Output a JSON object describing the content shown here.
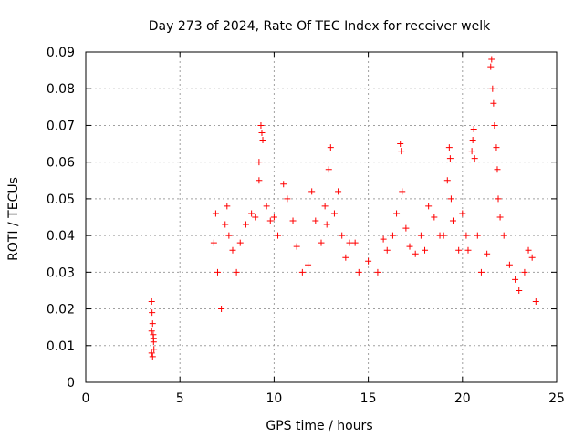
{
  "chart_data": {
    "type": "scatter",
    "title": "Day 273 of 2024, Rate Of TEC Index for receiver welk",
    "xlabel": "GPS time / hours",
    "ylabel": "ROTI / TECUs",
    "xlim": [
      0,
      25
    ],
    "ylim": [
      0,
      0.09
    ],
    "xticks": [
      0,
      5,
      10,
      15,
      20,
      25
    ],
    "xtick_labels": [
      "0",
      "5",
      "10",
      "15",
      "20",
      "25"
    ],
    "yticks": [
      0,
      0.01,
      0.02,
      0.03,
      0.04,
      0.05,
      0.06,
      0.07,
      0.08,
      0.09
    ],
    "ytick_labels": [
      "0",
      "0.01",
      "0.02",
      "0.03",
      "0.04",
      "0.05",
      "0.06",
      "0.07",
      "0.08",
      "0.09"
    ],
    "grid": true,
    "marker": "+",
    "color": "#ff0000",
    "series": [
      {
        "points": [
          [
            3.5,
            0.022
          ],
          [
            3.52,
            0.019
          ],
          [
            3.55,
            0.016
          ],
          [
            3.58,
            0.013
          ],
          [
            3.6,
            0.011
          ],
          [
            3.62,
            0.009
          ],
          [
            3.5,
            0.008
          ],
          [
            3.55,
            0.007
          ],
          [
            3.6,
            0.012
          ],
          [
            3.5,
            0.014
          ],
          [
            6.8,
            0.038
          ],
          [
            6.9,
            0.046
          ],
          [
            7.0,
            0.03
          ],
          [
            7.2,
            0.02
          ],
          [
            7.4,
            0.043
          ],
          [
            7.5,
            0.048
          ],
          [
            7.6,
            0.04
          ],
          [
            7.8,
            0.036
          ],
          [
            8.0,
            0.03
          ],
          [
            8.2,
            0.038
          ],
          [
            8.5,
            0.043
          ],
          [
            8.8,
            0.046
          ],
          [
            9.0,
            0.045
          ],
          [
            9.2,
            0.06
          ],
          [
            9.3,
            0.07
          ],
          [
            9.35,
            0.068
          ],
          [
            9.4,
            0.066
          ],
          [
            9.2,
            0.055
          ],
          [
            9.6,
            0.048
          ],
          [
            9.8,
            0.044
          ],
          [
            10.0,
            0.045
          ],
          [
            10.2,
            0.04
          ],
          [
            10.5,
            0.054
          ],
          [
            10.7,
            0.05
          ],
          [
            11.0,
            0.044
          ],
          [
            11.2,
            0.037
          ],
          [
            11.5,
            0.03
          ],
          [
            11.8,
            0.032
          ],
          [
            12.0,
            0.052
          ],
          [
            12.2,
            0.044
          ],
          [
            12.5,
            0.038
          ],
          [
            12.7,
            0.048
          ],
          [
            12.8,
            0.043
          ],
          [
            12.9,
            0.058
          ],
          [
            13.0,
            0.064
          ],
          [
            13.2,
            0.046
          ],
          [
            13.4,
            0.052
          ],
          [
            13.6,
            0.04
          ],
          [
            13.8,
            0.034
          ],
          [
            14.0,
            0.038
          ],
          [
            14.3,
            0.038
          ],
          [
            14.5,
            0.03
          ],
          [
            15.0,
            0.033
          ],
          [
            15.5,
            0.03
          ],
          [
            15.8,
            0.039
          ],
          [
            16.0,
            0.036
          ],
          [
            16.3,
            0.04
          ],
          [
            16.5,
            0.046
          ],
          [
            16.7,
            0.065
          ],
          [
            16.75,
            0.063
          ],
          [
            16.8,
            0.052
          ],
          [
            17.0,
            0.042
          ],
          [
            17.2,
            0.037
          ],
          [
            17.5,
            0.035
          ],
          [
            17.8,
            0.04
          ],
          [
            18.0,
            0.036
          ],
          [
            18.2,
            0.048
          ],
          [
            18.5,
            0.045
          ],
          [
            18.8,
            0.04
          ],
          [
            19.0,
            0.04
          ],
          [
            19.2,
            0.055
          ],
          [
            19.3,
            0.064
          ],
          [
            19.35,
            0.061
          ],
          [
            19.4,
            0.05
          ],
          [
            19.5,
            0.044
          ],
          [
            19.8,
            0.036
          ],
          [
            20.0,
            0.046
          ],
          [
            20.2,
            0.04
          ],
          [
            20.3,
            0.036
          ],
          [
            20.5,
            0.063
          ],
          [
            20.55,
            0.066
          ],
          [
            20.6,
            0.069
          ],
          [
            20.65,
            0.061
          ],
          [
            20.8,
            0.04
          ],
          [
            21.0,
            0.03
          ],
          [
            21.3,
            0.035
          ],
          [
            21.5,
            0.086
          ],
          [
            21.55,
            0.088
          ],
          [
            21.6,
            0.08
          ],
          [
            21.65,
            0.076
          ],
          [
            21.7,
            0.07
          ],
          [
            21.8,
            0.064
          ],
          [
            21.85,
            0.058
          ],
          [
            21.9,
            0.05
          ],
          [
            22.0,
            0.045
          ],
          [
            22.2,
            0.04
          ],
          [
            22.5,
            0.032
          ],
          [
            22.8,
            0.028
          ],
          [
            23.0,
            0.025
          ],
          [
            23.3,
            0.03
          ],
          [
            23.5,
            0.036
          ],
          [
            23.7,
            0.034
          ],
          [
            23.9,
            0.022
          ]
        ]
      }
    ]
  }
}
